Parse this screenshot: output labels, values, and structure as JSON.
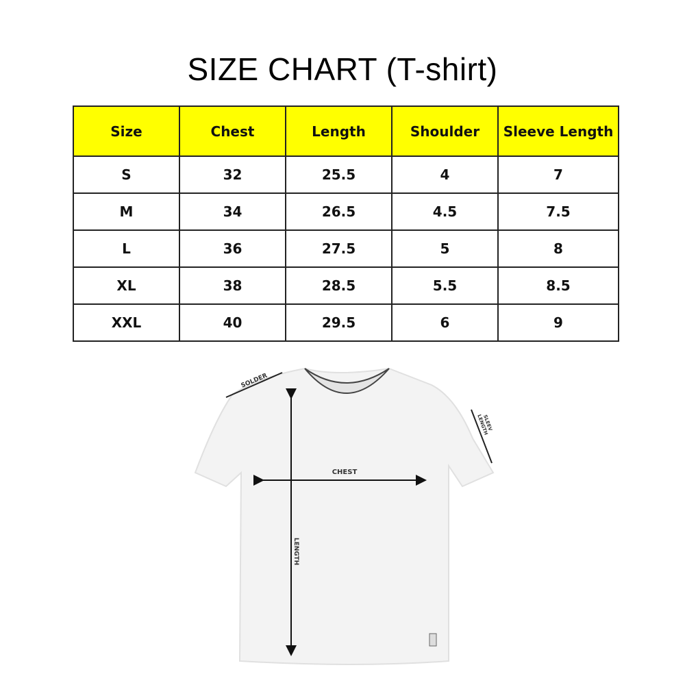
{
  "title": "SIZE CHART (T-shirt)",
  "colors": {
    "header_bg": "#ffff00",
    "border": "#222222"
  },
  "table": {
    "headers": [
      "Size",
      "Chest",
      "Length",
      "Shoulder",
      "Sleeve Length"
    ],
    "rows": [
      [
        "S",
        "32",
        "25.5",
        "4",
        "7"
      ],
      [
        "M",
        "34",
        "26.5",
        "4.5",
        "7.5"
      ],
      [
        "L",
        "36",
        "27.5",
        "5",
        "8"
      ],
      [
        "XL",
        "38",
        "28.5",
        "5.5",
        "8.5"
      ],
      [
        "XXL",
        "40",
        "29.5",
        "6",
        "9"
      ]
    ]
  },
  "diagram": {
    "shoulder_label": "SOLDER",
    "chest_label": "CHEST",
    "length_label": "LENGTH",
    "sleeve_label_1": "SLEEV",
    "sleeve_label_2": "LENGTH"
  }
}
